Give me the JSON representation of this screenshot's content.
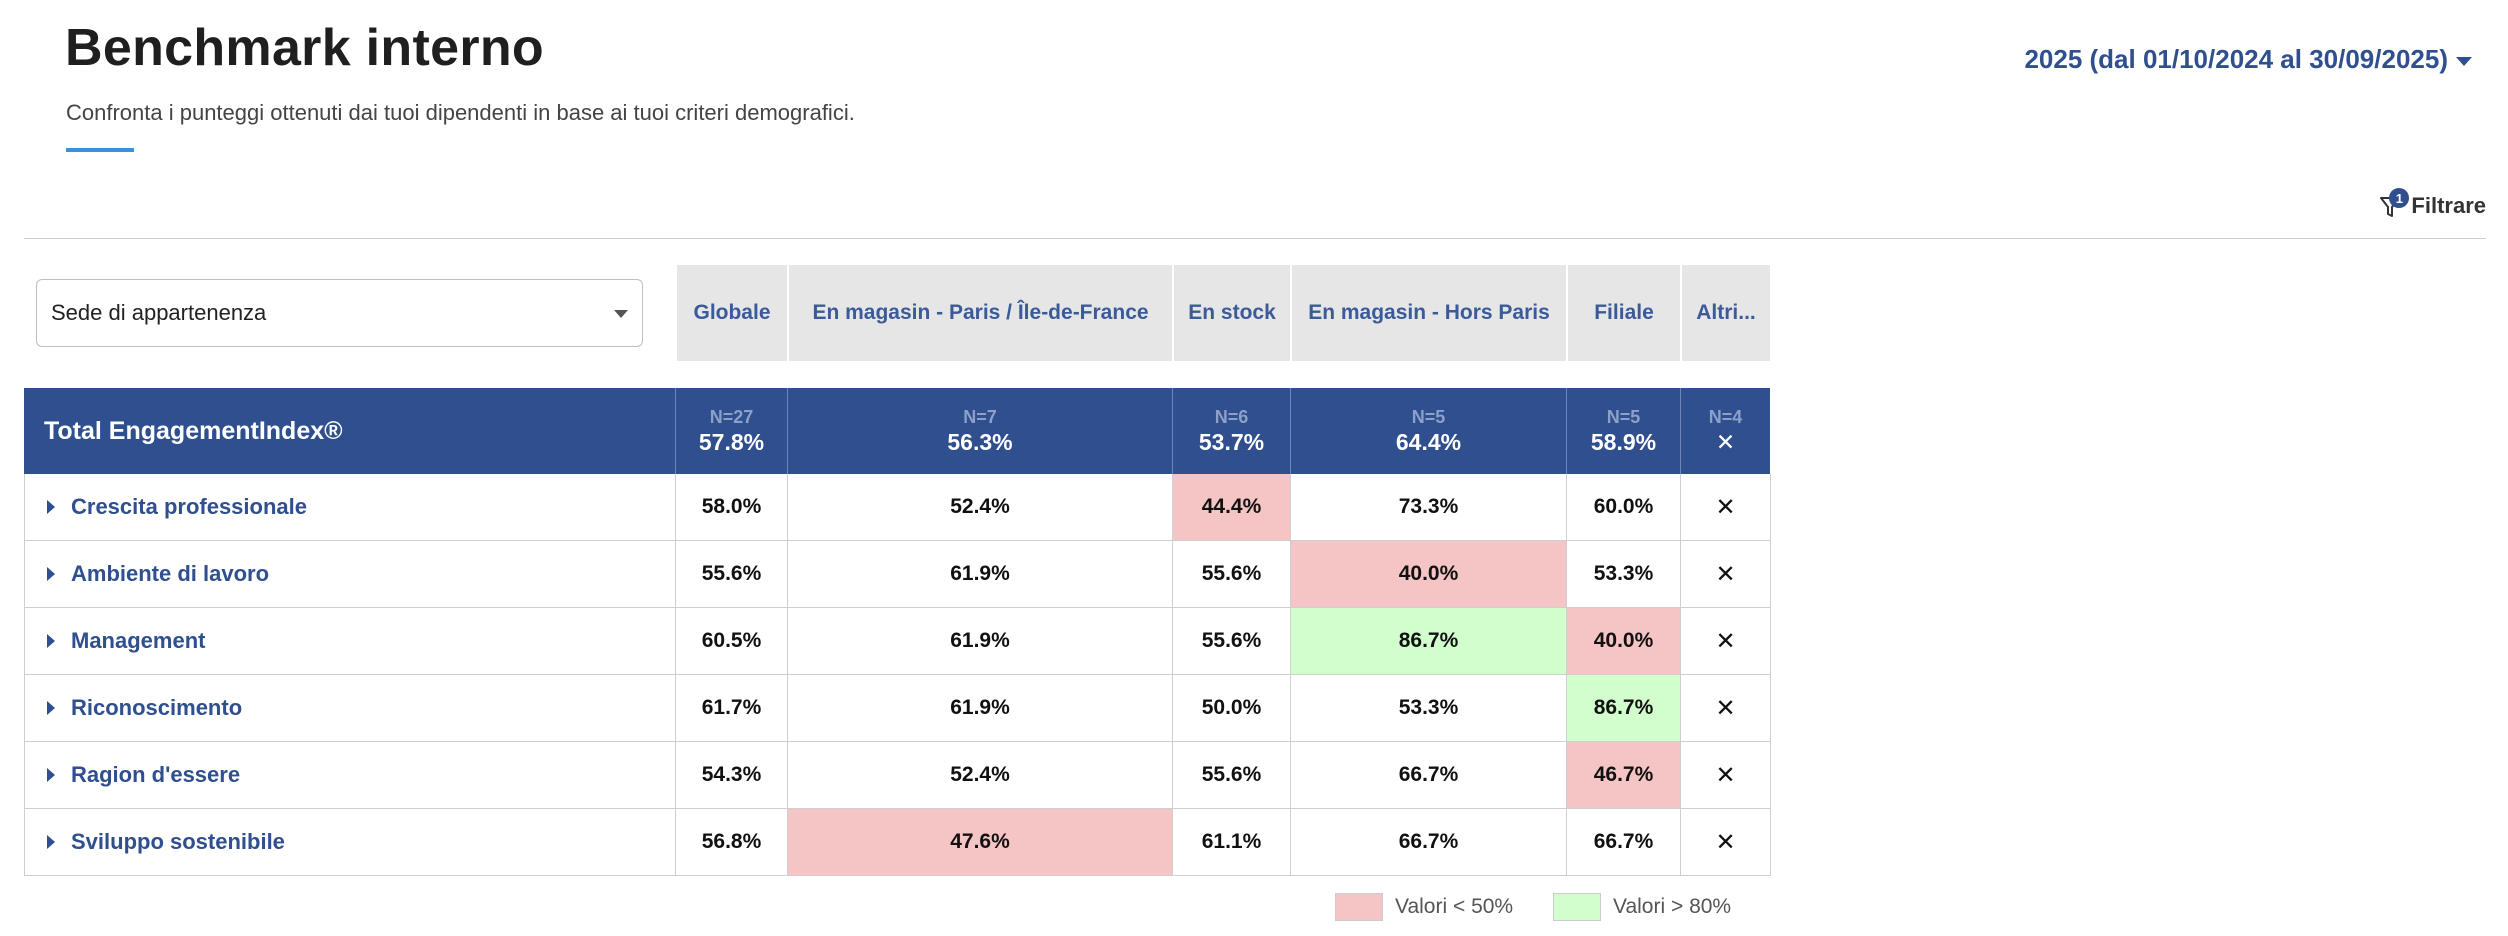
{
  "header": {
    "title": "Benchmark interno",
    "subtitle": "Confronta i punteggi ottenuti dai tuoi dipendenti in base ai tuoi criteri demografici.",
    "period": "2025 (dal 01/10/2024 al 30/09/2025)"
  },
  "filter": {
    "label": "Filtrare",
    "badge": "1"
  },
  "dimension_select": {
    "value": "Sede di appartenenza"
  },
  "columns": [
    "Globale",
    "En magasin - Paris / Île-de-France",
    "En stock",
    "En magasin - Hors Paris",
    "Filiale",
    "Altri..."
  ],
  "total": {
    "label": "Total EngagementIndex®",
    "cells": [
      {
        "n": "N=27",
        "value": "57.8%"
      },
      {
        "n": "N=7",
        "value": "56.3%"
      },
      {
        "n": "N=6",
        "value": "53.7%"
      },
      {
        "n": "N=5",
        "value": "64.4%"
      },
      {
        "n": "N=5",
        "value": "58.9%"
      },
      {
        "n": "N=4",
        "value": "✕"
      }
    ]
  },
  "rows": [
    {
      "label": "Crescita professionale",
      "values": [
        "58.0%",
        "52.4%",
        "44.4%",
        "73.3%",
        "60.0%",
        "✕"
      ]
    },
    {
      "label": "Ambiente di lavoro",
      "values": [
        "55.6%",
        "61.9%",
        "55.6%",
        "40.0%",
        "53.3%",
        "✕"
      ]
    },
    {
      "label": "Management",
      "values": [
        "60.5%",
        "61.9%",
        "55.6%",
        "86.7%",
        "40.0%",
        "✕"
      ]
    },
    {
      "label": "Riconoscimento",
      "values": [
        "61.7%",
        "61.9%",
        "50.0%",
        "53.3%",
        "86.7%",
        "✕"
      ]
    },
    {
      "label": "Ragion d'essere",
      "values": [
        "54.3%",
        "52.4%",
        "55.6%",
        "66.7%",
        "46.7%",
        "✕"
      ]
    },
    {
      "label": "Sviluppo sostenibile",
      "values": [
        "56.8%",
        "47.6%",
        "61.1%",
        "66.7%",
        "66.7%",
        "✕"
      ]
    }
  ],
  "legend": {
    "low": "Valori < 50%",
    "high": "Valori > 80%"
  },
  "colors": {
    "low": "#f5c4c4",
    "high": "#d2fdcc",
    "header_blue": "#2f4f8f",
    "accent": "#3d8fd6"
  }
}
